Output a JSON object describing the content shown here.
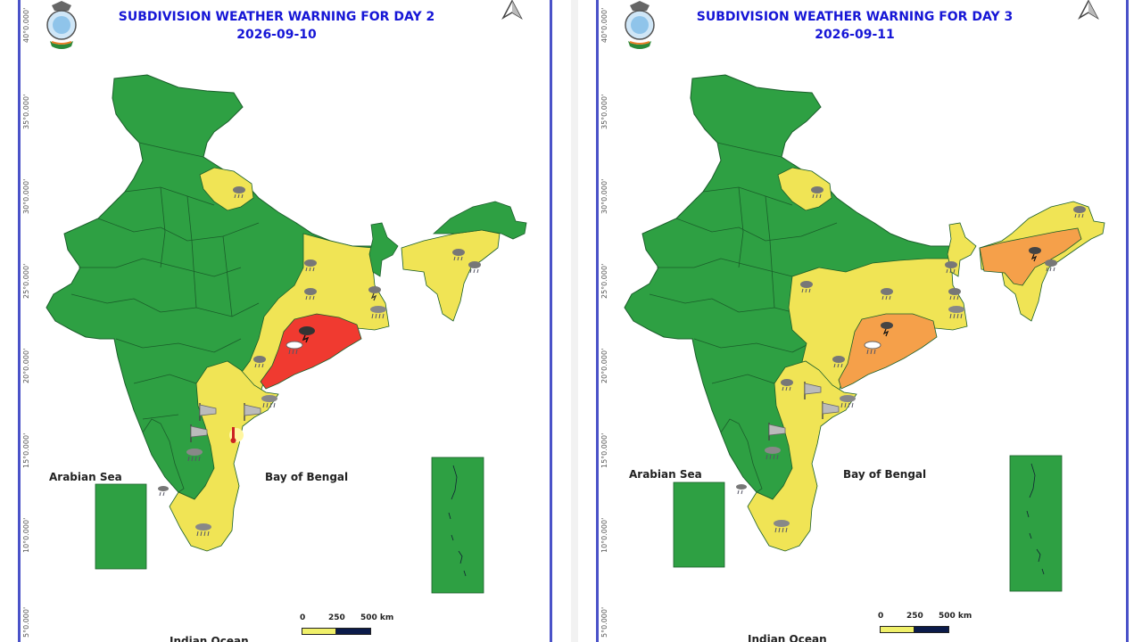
{
  "maps": [
    {
      "title": "SUBDIVISION WEATHER WARNING FOR DAY 2",
      "date": "2026-09-10",
      "lat_labels": [
        "40°0.000'",
        "35°0.000'",
        "30°0.000'",
        "25°0.000'",
        "20°0.000'",
        "15°0.000'",
        "10°0.000'",
        "5°0.000'"
      ],
      "sea_labels": [
        "Arabian Sea",
        "Bay of Bengal",
        "Indian Ocean"
      ],
      "scale": {
        "ticks": [
          "0",
          "250",
          "500 km"
        ]
      }
    },
    {
      "title": "SUBDIVISION WEATHER WARNING FOR DAY 3",
      "date": "2026-09-11",
      "lat_labels": [
        "40°0.000'",
        "35°0.000'",
        "30°0.000'",
        "25°0.000'",
        "20°0.000'",
        "15°0.000'",
        "10°0.000'",
        "5°0.000'"
      ],
      "sea_labels": [
        "Arabian Sea",
        "Bay of Bengal",
        "Indian Ocean"
      ],
      "scale": {
        "ticks": [
          "0",
          "250",
          "500 km"
        ]
      }
    }
  ],
  "legend_colors": {
    "no_warning": "#2ea043",
    "watch": "#f0e455",
    "alert": "#f5a04a",
    "warning": "#f03a30"
  },
  "icons": [
    "imd-emblem-icon",
    "north-arrow-icon",
    "heavy-rain-icon",
    "thunderstorm-icon",
    "gusty-wind-icon",
    "hot-humid-icon"
  ]
}
